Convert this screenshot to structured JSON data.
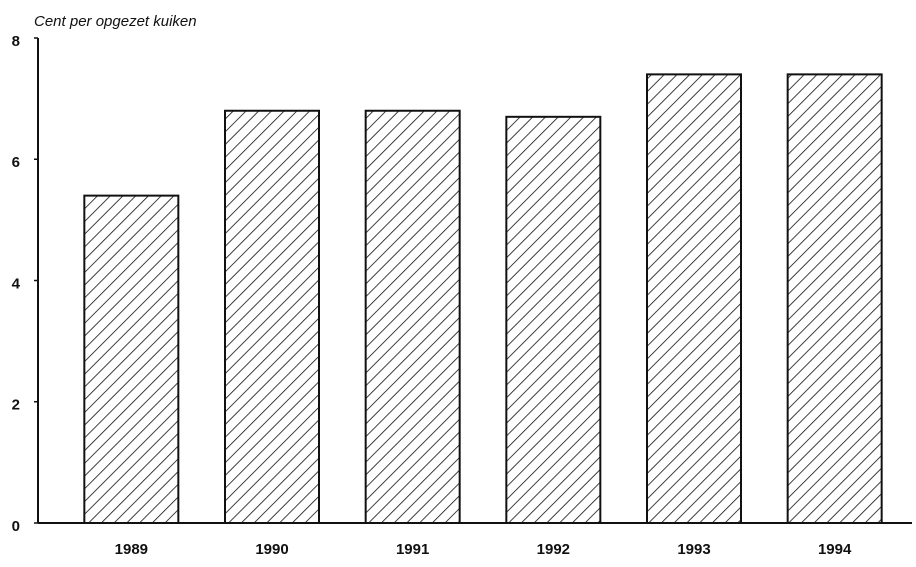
{
  "chart_data": {
    "type": "bar",
    "y_axis_label": "Cent per opgezet kuiken",
    "categories": [
      "1989",
      "1990",
      "1991",
      "1992",
      "1993",
      "1994"
    ],
    "values": [
      5.4,
      6.8,
      6.8,
      6.7,
      7.4,
      7.4
    ],
    "color": "#111111",
    "ylim": [
      0,
      8
    ],
    "yticks": [
      0,
      2,
      4,
      6,
      8
    ],
    "grid": false
  }
}
